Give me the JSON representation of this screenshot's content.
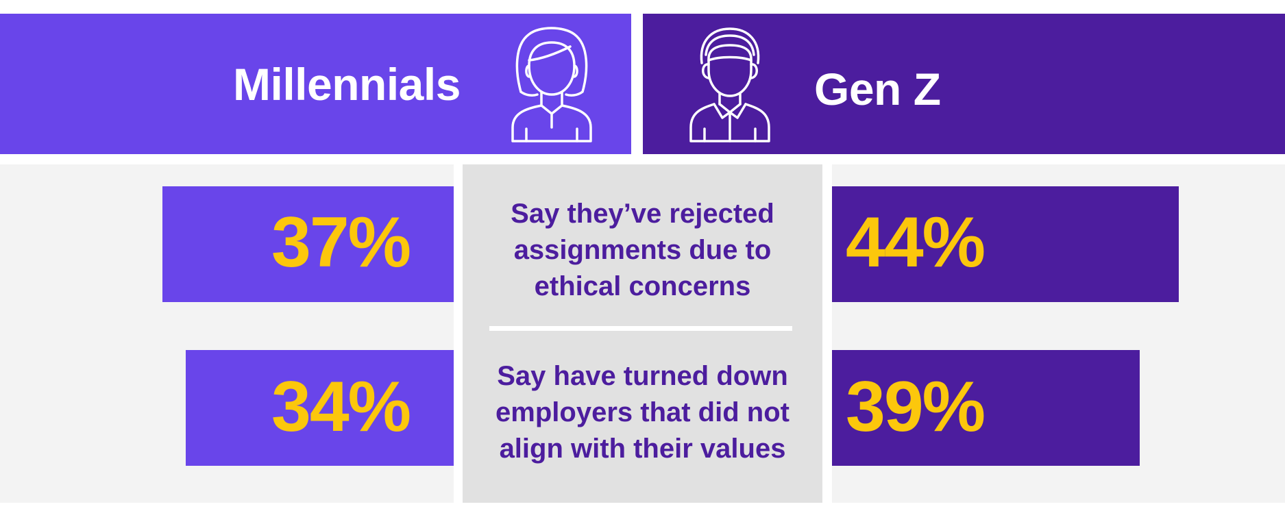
{
  "colors": {
    "millennials": "#6945ea",
    "genz": "#4c1d9e",
    "value": "#fcc70c",
    "statement": "#4c1d9e"
  },
  "icons": {
    "millennials": "woman-avatar-icon",
    "genz": "man-avatar-icon"
  },
  "chart_data": {
    "type": "bar",
    "series": [
      {
        "name": "Millennials",
        "values": [
          37,
          34
        ]
      },
      {
        "name": "Gen Z",
        "values": [
          44,
          39
        ]
      }
    ],
    "categories": [
      "Say they’ve rejected assignments due to ethical concerns",
      "Say have turned down employers that did not align with their values"
    ],
    "value_labels": [
      [
        "37%",
        "34%"
      ],
      [
        "44%",
        "39%"
      ]
    ],
    "unit": "%",
    "ylim": [
      0,
      100
    ]
  }
}
